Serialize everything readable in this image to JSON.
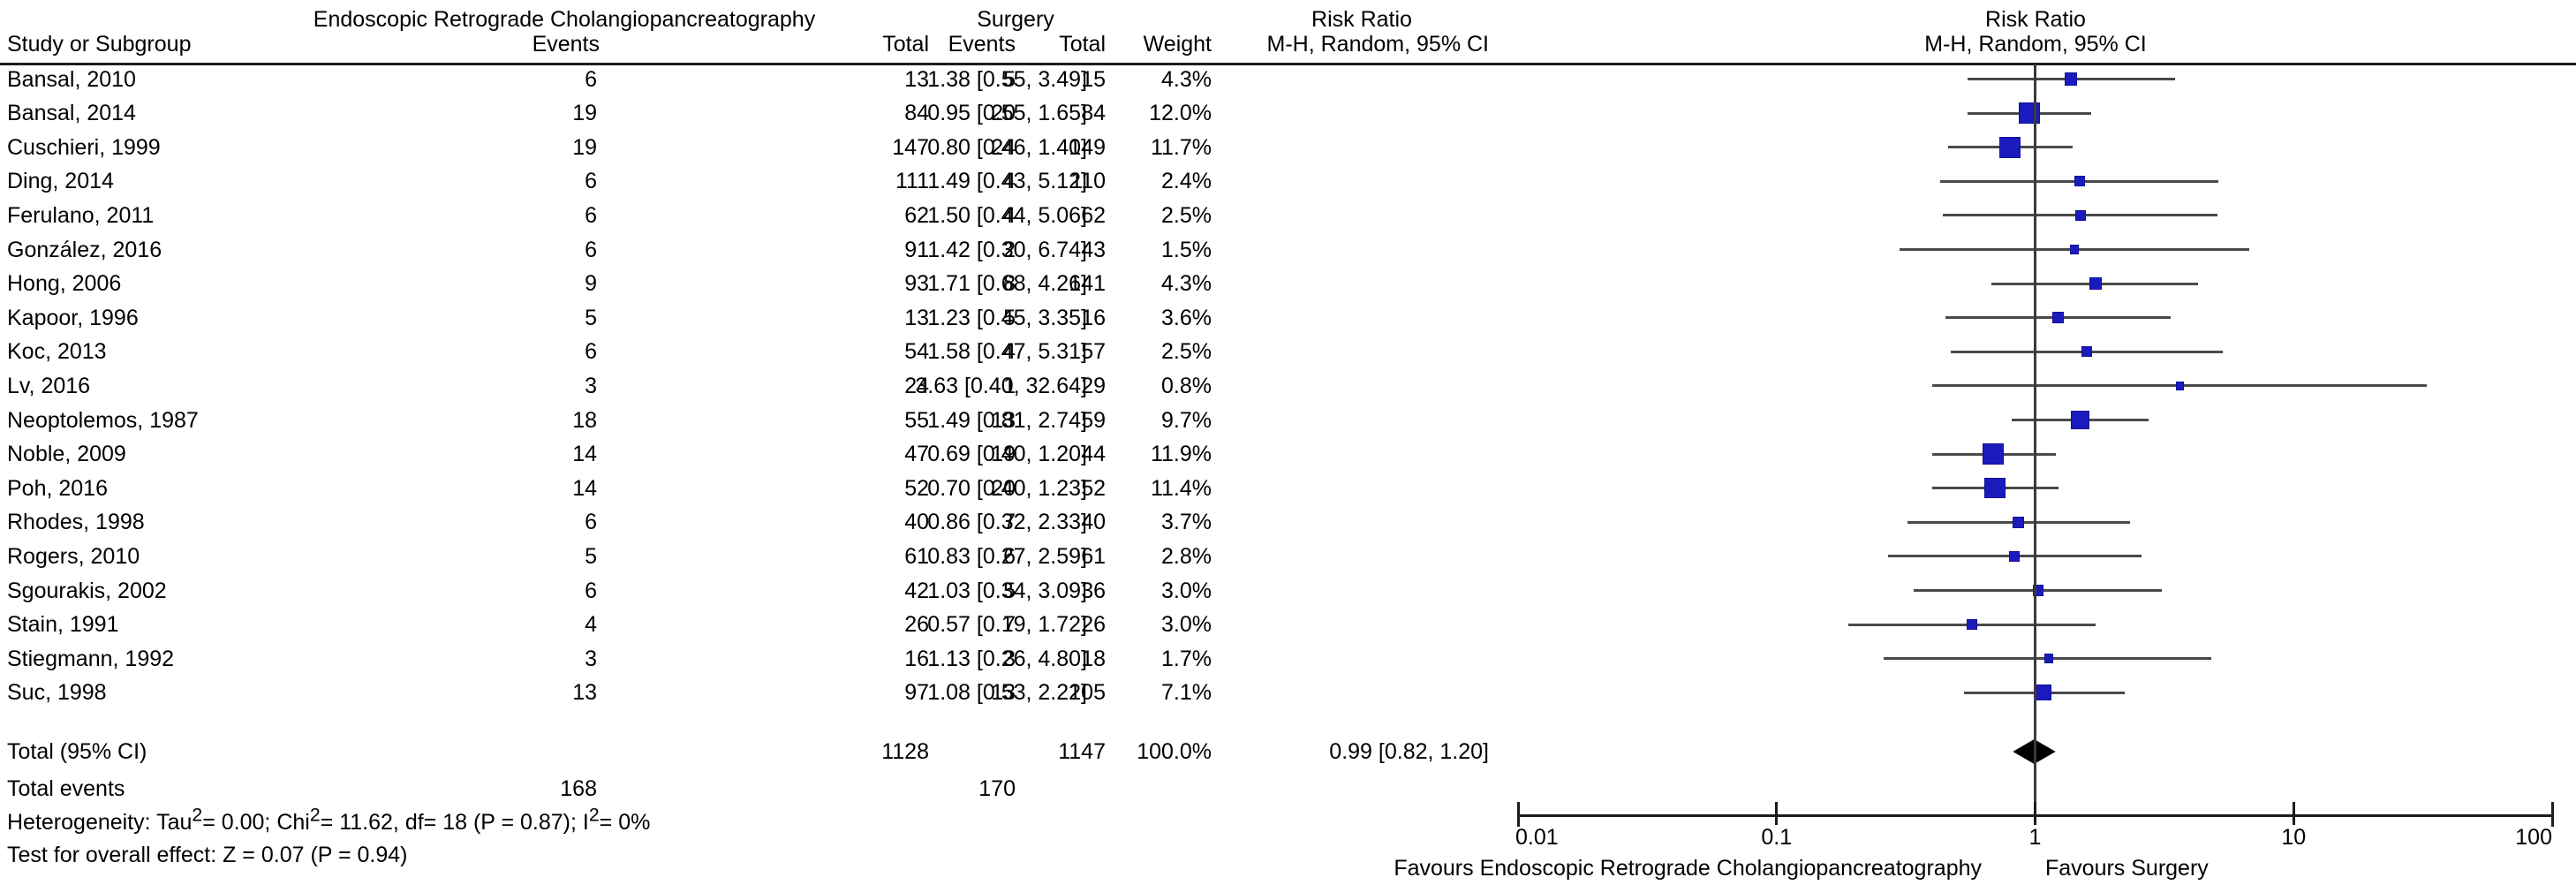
{
  "headers": {
    "group_left": "Endoscopic Retrograde Cholangiopancreatography",
    "group_surgery": "Surgery",
    "group_rr_text": "Risk Ratio",
    "group_rr_plot": "Risk Ratio",
    "study": "Study or Subgroup",
    "events1": "Events",
    "total1": "Total",
    "events2": "Events",
    "total2": "Total",
    "weight": "Weight",
    "mh_text": "M-H, Random, 95% CI",
    "mh_plot": "M-H, Random, 95% CI"
  },
  "totals": {
    "label": "Total (95% CI)",
    "total1": "1128",
    "total2": "1147",
    "weight": "100.0%",
    "ci_label": "0.99 [0.82, 1.20]",
    "events_label": "Total events",
    "events1": "168",
    "events2": "170"
  },
  "footer": {
    "het_parts": [
      "Heterogeneity: Tau",
      "2",
      "= 0.00; Chi",
      "2",
      "= 11.62, df= 18 (P = 0.87); I",
      "2",
      "= 0%"
    ],
    "overall_effect": "Test for overall effect: Z = 0.07 (P = 0.94)"
  },
  "chart_data": {
    "type": "forest",
    "title": "Risk Ratio",
    "subtitle": "M-H, Random, 95% CI",
    "x_scale": "log10",
    "xlim": [
      0.01,
      100
    ],
    "x_ticks": [
      0.01,
      0.1,
      1,
      10,
      100
    ],
    "x_tick_labels": [
      "0.01",
      "0.1",
      "1",
      "10",
      "100"
    ],
    "favours_left": "Favours Endoscopic Retrograde Cholangiopancreatography",
    "favours_right": "Favours Surgery",
    "marker_color": "#1b1bbd",
    "ci_color": "#4a4a4a",
    "studies": [
      {
        "study": "Bansal, 2010",
        "events1": 6,
        "total1": 13,
        "events2": 5,
        "total2": 15,
        "weight": "4.3%",
        "weight_pct": 4.3,
        "rr": 1.38,
        "ci_low": 0.55,
        "ci_high": 3.49,
        "ci_label": "1.38 [0.55, 3.49]"
      },
      {
        "study": "Bansal, 2014",
        "events1": 19,
        "total1": 84,
        "events2": 20,
        "total2": 84,
        "weight": "12.0%",
        "weight_pct": 12.0,
        "rr": 0.95,
        "ci_low": 0.55,
        "ci_high": 1.65,
        "ci_label": "0.95 [0.55, 1.65]"
      },
      {
        "study": "Cuschieri, 1999",
        "events1": 19,
        "total1": 147,
        "events2": 24,
        "total2": 149,
        "weight": "11.7%",
        "weight_pct": 11.7,
        "rr": 0.8,
        "ci_low": 0.46,
        "ci_high": 1.4,
        "ci_label": "0.80 [0.46, 1.40]"
      },
      {
        "study": "Ding, 2014",
        "events1": 6,
        "total1": 111,
        "events2": 4,
        "total2": 110,
        "weight": "2.4%",
        "weight_pct": 2.4,
        "rr": 1.49,
        "ci_low": 0.43,
        "ci_high": 5.12,
        "ci_label": "1.49 [0.43, 5.12]"
      },
      {
        "study": "Ferulano, 2011",
        "events1": 6,
        "total1": 62,
        "events2": 4,
        "total2": 62,
        "weight": "2.5%",
        "weight_pct": 2.5,
        "rr": 1.5,
        "ci_low": 0.44,
        "ci_high": 5.06,
        "ci_label": "1.50 [0.44, 5.06]"
      },
      {
        "study": "González, 2016",
        "events1": 6,
        "total1": 91,
        "events2": 2,
        "total2": 43,
        "weight": "1.5%",
        "weight_pct": 1.5,
        "rr": 1.42,
        "ci_low": 0.3,
        "ci_high": 6.74,
        "ci_label": "1.42 [0.30, 6.74]"
      },
      {
        "study": "Hong, 2006",
        "events1": 9,
        "total1": 93,
        "events2": 8,
        "total2": 141,
        "weight": "4.3%",
        "weight_pct": 4.3,
        "rr": 1.71,
        "ci_low": 0.68,
        "ci_high": 4.26,
        "ci_label": "1.71 [0.68, 4.26]"
      },
      {
        "study": "Kapoor, 1996",
        "events1": 5,
        "total1": 13,
        "events2": 5,
        "total2": 16,
        "weight": "3.6%",
        "weight_pct": 3.6,
        "rr": 1.23,
        "ci_low": 0.45,
        "ci_high": 3.35,
        "ci_label": "1.23 [0.45, 3.35]"
      },
      {
        "study": "Koc, 2013",
        "events1": 6,
        "total1": 54,
        "events2": 4,
        "total2": 57,
        "weight": "2.5%",
        "weight_pct": 2.5,
        "rr": 1.58,
        "ci_low": 0.47,
        "ci_high": 5.31,
        "ci_label": "1.58 [0.47, 5.31]"
      },
      {
        "study": "Lv, 2016",
        "events1": 3,
        "total1": 24,
        "events2": 1,
        "total2": 29,
        "weight": "0.8%",
        "weight_pct": 0.8,
        "rr": 3.63,
        "ci_low": 0.4,
        "ci_high": 32.64,
        "ci_label": "3.63 [0.40, 32.64]"
      },
      {
        "study": "Neoptolemos, 1987",
        "events1": 18,
        "total1": 55,
        "events2": 13,
        "total2": 59,
        "weight": "9.7%",
        "weight_pct": 9.7,
        "rr": 1.49,
        "ci_low": 0.81,
        "ci_high": 2.74,
        "ci_label": "1.49 [0.81, 2.74]"
      },
      {
        "study": "Noble, 2009",
        "events1": 14,
        "total1": 47,
        "events2": 19,
        "total2": 44,
        "weight": "11.9%",
        "weight_pct": 11.9,
        "rr": 0.69,
        "ci_low": 0.4,
        "ci_high": 1.2,
        "ci_label": "0.69 [0.40, 1.20]"
      },
      {
        "study": "Poh, 2016",
        "events1": 14,
        "total1": 52,
        "events2": 20,
        "total2": 52,
        "weight": "11.4%",
        "weight_pct": 11.4,
        "rr": 0.7,
        "ci_low": 0.4,
        "ci_high": 1.23,
        "ci_label": "0.70 [0.40, 1.23]"
      },
      {
        "study": "Rhodes, 1998",
        "events1": 6,
        "total1": 40,
        "events2": 7,
        "total2": 40,
        "weight": "3.7%",
        "weight_pct": 3.7,
        "rr": 0.86,
        "ci_low": 0.32,
        "ci_high": 2.33,
        "ci_label": "0.86 [0.32, 2.33]"
      },
      {
        "study": "Rogers, 2010",
        "events1": 5,
        "total1": 61,
        "events2": 6,
        "total2": 61,
        "weight": "2.8%",
        "weight_pct": 2.8,
        "rr": 0.83,
        "ci_low": 0.27,
        "ci_high": 2.59,
        "ci_label": "0.83 [0.27, 2.59]"
      },
      {
        "study": "Sgourakis, 2002",
        "events1": 6,
        "total1": 42,
        "events2": 5,
        "total2": 36,
        "weight": "3.0%",
        "weight_pct": 3.0,
        "rr": 1.03,
        "ci_low": 0.34,
        "ci_high": 3.09,
        "ci_label": "1.03 [0.34, 3.09]"
      },
      {
        "study": "Stain, 1991",
        "events1": 4,
        "total1": 26,
        "events2": 7,
        "total2": 26,
        "weight": "3.0%",
        "weight_pct": 3.0,
        "rr": 0.57,
        "ci_low": 0.19,
        "ci_high": 1.72,
        "ci_label": "0.57 [0.19, 1.72]"
      },
      {
        "study": "Stiegmann, 1992",
        "events1": 3,
        "total1": 16,
        "events2": 3,
        "total2": 18,
        "weight": "1.7%",
        "weight_pct": 1.7,
        "rr": 1.13,
        "ci_low": 0.26,
        "ci_high": 4.8,
        "ci_label": "1.13 [0.26, 4.80]"
      },
      {
        "study": "Suc, 1998",
        "events1": 13,
        "total1": 97,
        "events2": 13,
        "total2": 105,
        "weight": "7.1%",
        "weight_pct": 7.1,
        "rr": 1.08,
        "ci_low": 0.53,
        "ci_high": 2.22,
        "ci_label": "1.08 [0.53, 2.22]"
      }
    ],
    "total": {
      "rr": 0.99,
      "ci_low": 0.82,
      "ci_high": 1.2
    }
  }
}
